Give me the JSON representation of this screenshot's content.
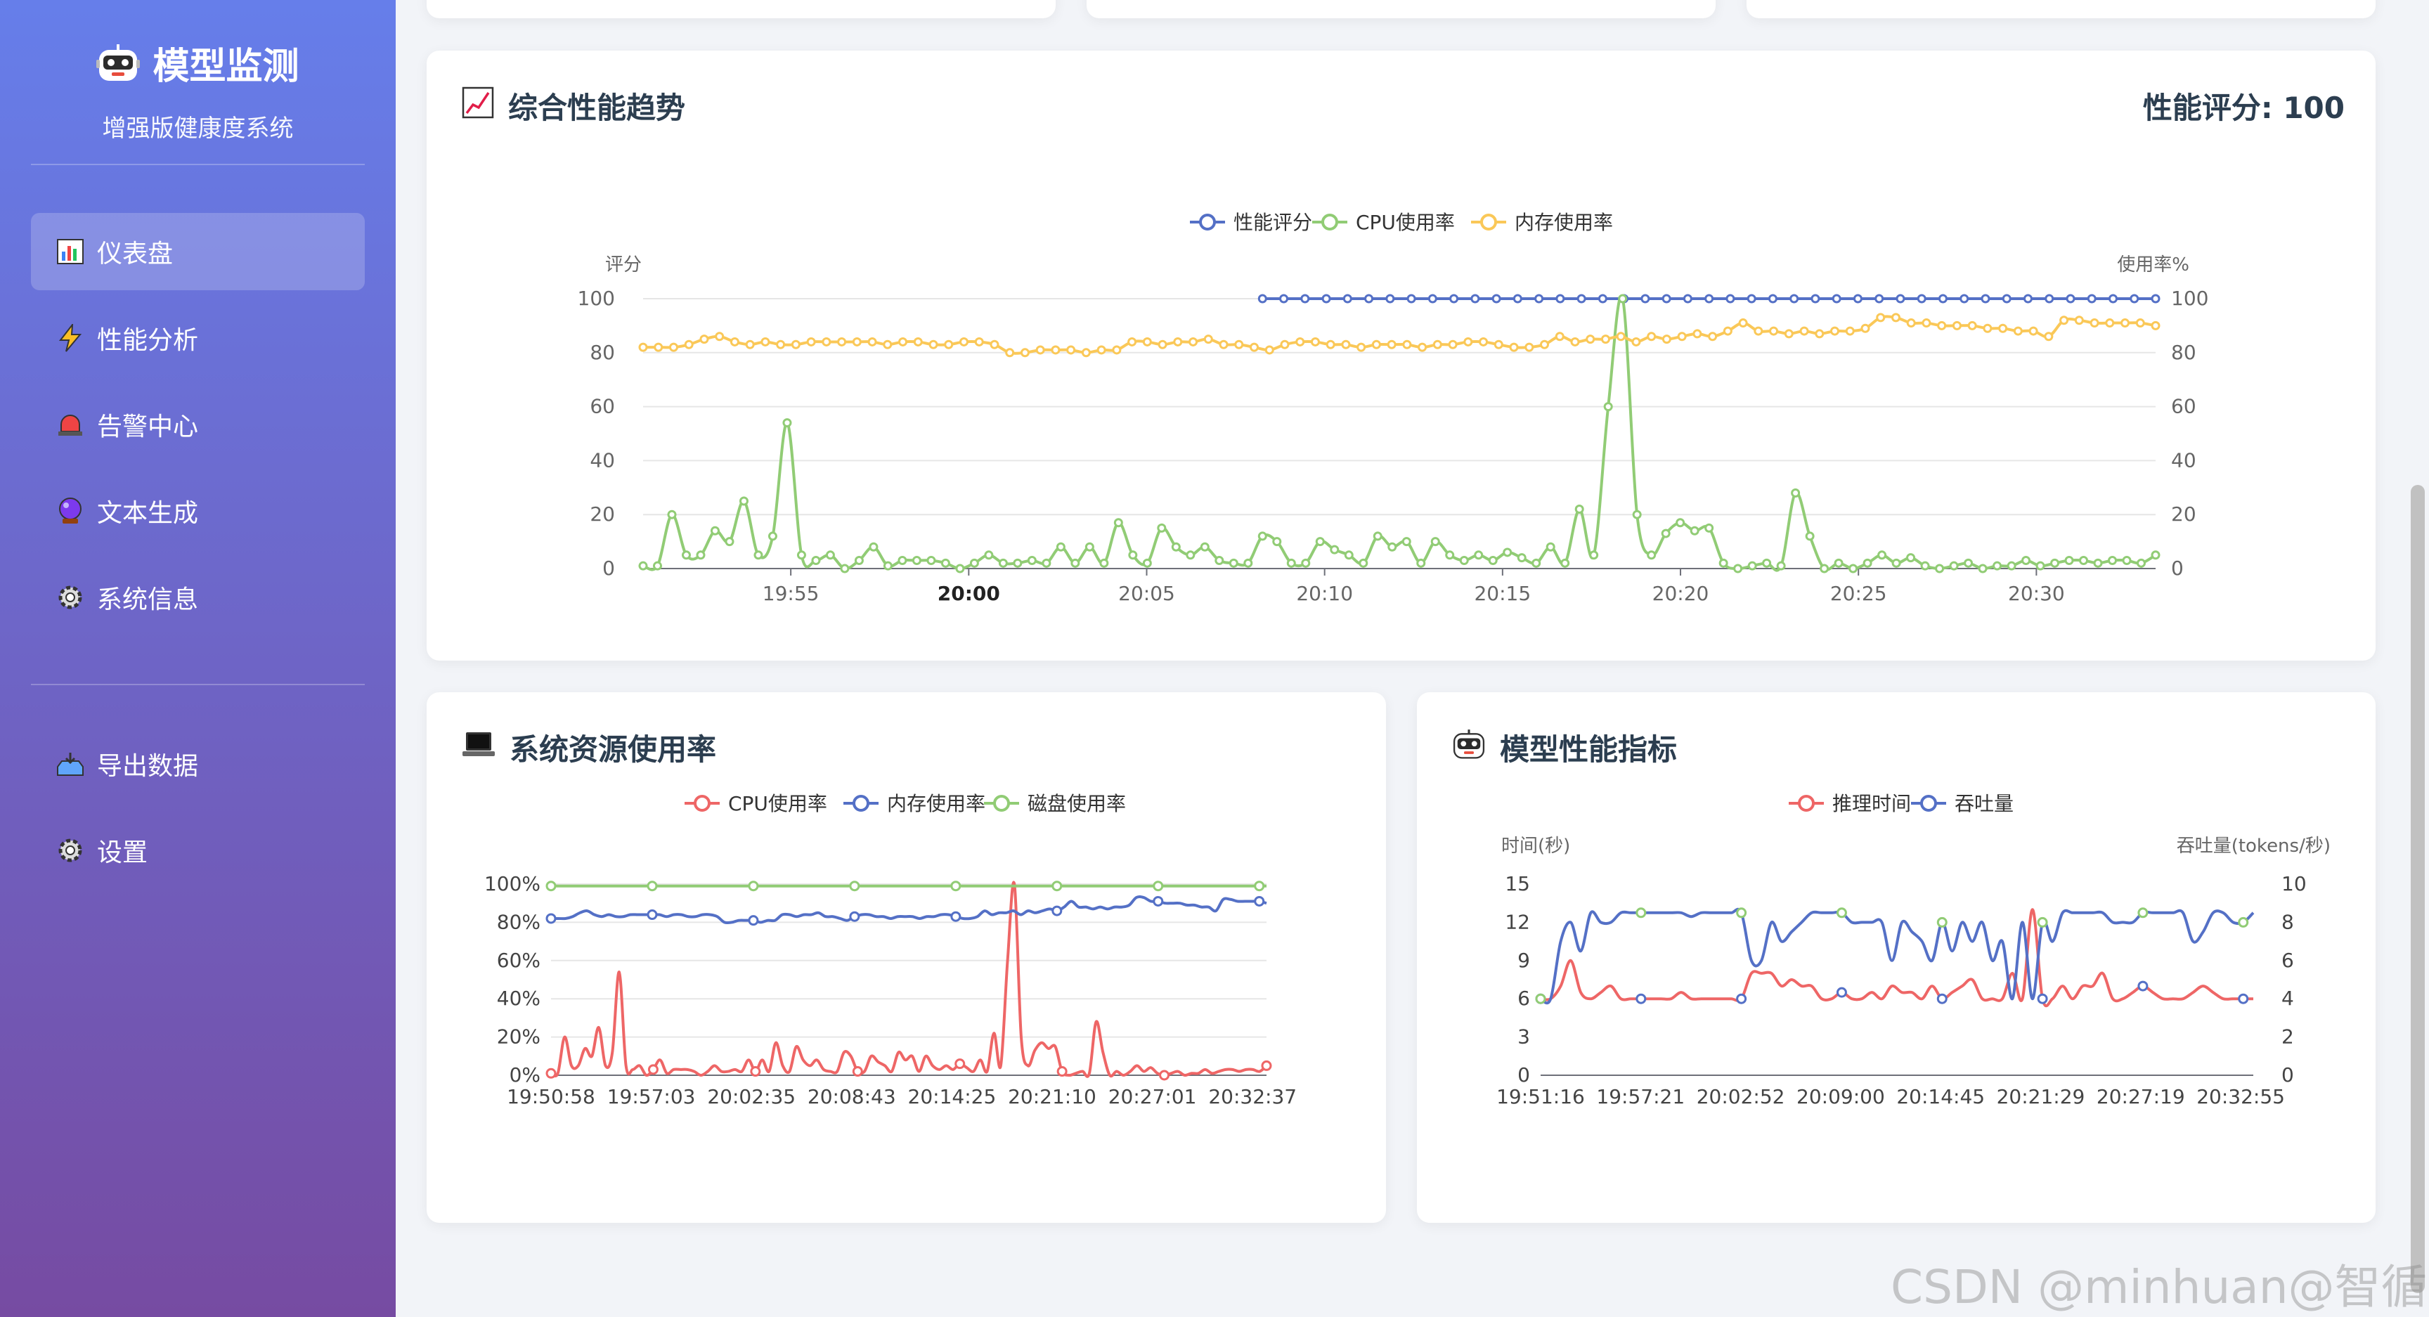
{
  "sidebar": {
    "title": "模型监测",
    "subtitle": "增强版健康度系统",
    "items": [
      {
        "label": "仪表盘",
        "icon": "bar-chart-icon",
        "active": true
      },
      {
        "label": "性能分析",
        "icon": "lightning-icon"
      },
      {
        "label": "告警中心",
        "icon": "siren-icon"
      },
      {
        "label": "文本生成",
        "icon": "crystal-ball-icon"
      },
      {
        "label": "系统信息",
        "icon": "gear-icon"
      }
    ],
    "bottom_items": [
      {
        "label": "导出数据",
        "icon": "tray-icon"
      },
      {
        "label": "设置",
        "icon": "gear-icon"
      }
    ]
  },
  "trend_card": {
    "title": "综合性能趋势",
    "score_label": "性能评分: 100"
  },
  "resource_card": {
    "title": "系统资源使用率"
  },
  "model_card": {
    "title": "模型性能指标"
  },
  "watermark": "CSDN @minhuan@智循AI",
  "chart_data": [
    {
      "type": "line",
      "id": "trend",
      "ylabel": "评分",
      "y2label": "使用率%",
      "ylim": [
        0,
        100
      ],
      "y2lim": [
        0,
        100
      ],
      "yticks": [
        0,
        20,
        40,
        60,
        80,
        100
      ],
      "xticks": [
        "19:55",
        "20:00",
        "20:05",
        "20:10",
        "20:15",
        "20:20",
        "20:25",
        "20:30"
      ],
      "xlim": [
        0,
        85
      ],
      "xtick_positions": [
        8.3,
        18.3,
        28.3,
        38.3,
        48.3,
        58.3,
        68.3,
        78.3
      ],
      "bold_tick": "20:00",
      "grid": true,
      "legend": "top-center",
      "series": [
        {
          "name": "性能评分",
          "color": "#5470c6",
          "start": 43,
          "values": [
            100,
            100,
            100,
            100,
            100,
            100,
            100,
            100,
            100,
            100,
            100,
            100,
            100,
            100,
            100,
            100,
            100,
            100,
            100,
            100,
            100,
            100,
            100,
            100,
            100,
            100,
            100,
            100,
            100,
            100,
            100,
            100,
            100,
            100,
            100,
            100,
            100,
            100,
            100,
            100,
            100,
            100,
            100
          ]
        },
        {
          "name": "CPU使用率",
          "color": "#91cc75",
          "start": 0,
          "values": [
            1,
            1,
            20,
            5,
            5,
            14,
            10,
            25,
            5,
            12,
            54,
            5,
            3,
            5,
            0,
            3,
            8,
            1,
            3,
            3,
            3,
            2,
            0,
            2,
            5,
            2,
            2,
            3,
            2,
            8,
            2,
            8,
            2,
            17,
            5,
            2,
            15,
            8,
            5,
            8,
            3,
            2,
            2,
            12,
            10,
            2,
            2,
            10,
            7,
            5,
            2,
            12,
            8,
            10,
            2,
            10,
            5,
            3,
            5,
            3,
            6,
            4,
            2,
            8,
            2,
            22,
            5,
            60,
            100,
            20,
            5,
            13,
            17,
            14,
            15,
            2,
            0,
            1,
            2,
            1,
            28,
            12,
            0,
            2,
            0,
            2,
            5,
            2,
            4,
            1,
            0,
            1,
            2,
            0,
            1,
            1,
            3,
            1,
            2,
            3,
            3,
            2,
            3,
            3,
            2,
            5
          ]
        },
        {
          "name": "内存使用率",
          "color": "#fac858",
          "start": 0,
          "values": [
            82,
            82,
            82,
            83,
            85,
            86,
            84,
            83,
            84,
            83,
            83,
            84,
            84,
            84,
            84,
            84,
            83,
            84,
            84,
            83,
            83,
            84,
            84,
            83,
            80,
            80,
            81,
            81,
            81,
            80,
            81,
            81,
            84,
            84,
            83,
            84,
            84,
            85,
            83,
            83,
            82,
            81,
            83,
            84,
            84,
            83,
            83,
            82,
            83,
            83,
            83,
            82,
            83,
            83,
            84,
            84,
            83,
            82,
            82,
            83,
            86,
            84,
            85,
            85,
            86,
            84,
            86,
            85,
            86,
            87,
            86,
            88,
            91,
            88,
            88,
            87,
            88,
            87,
            88,
            88,
            89,
            93,
            93,
            91,
            91,
            90,
            90,
            90,
            89,
            89,
            88,
            88,
            86,
            92,
            92,
            91,
            91,
            91,
            91,
            90
          ]
        }
      ]
    },
    {
      "type": "line",
      "id": "resource",
      "yticks": [
        "0%",
        "20%",
        "40%",
        "60%",
        "80%",
        "100%"
      ],
      "ylim": [
        0,
        100
      ],
      "xticks": [
        "19:50:58",
        "19:57:03",
        "20:02:35",
        "20:08:43",
        "20:14:25",
        "20:21:10",
        "20:27:01",
        "20:32:37"
      ],
      "legend": "top-center",
      "grid": true,
      "series": [
        {
          "name": "CPU使用率",
          "color": "#ee6666",
          "values": [
            1,
            1,
            20,
            5,
            5,
            14,
            10,
            25,
            5,
            12,
            54,
            5,
            3,
            5,
            0,
            3,
            8,
            1,
            3,
            3,
            3,
            2,
            0,
            2,
            5,
            2,
            2,
            3,
            2,
            8,
            2,
            8,
            2,
            17,
            5,
            2,
            15,
            8,
            5,
            8,
            3,
            2,
            2,
            12,
            10,
            2,
            2,
            10,
            7,
            5,
            2,
            12,
            8,
            10,
            2,
            10,
            5,
            3,
            5,
            3,
            6,
            4,
            2,
            8,
            2,
            22,
            5,
            60,
            100,
            20,
            5,
            13,
            17,
            14,
            15,
            2,
            0,
            1,
            2,
            1,
            28,
            12,
            0,
            2,
            0,
            2,
            5,
            2,
            4,
            1,
            0,
            1,
            2,
            0,
            1,
            1,
            3,
            1,
            2,
            3,
            3,
            2,
            3,
            3,
            2,
            5
          ]
        },
        {
          "name": "内存使用率",
          "color": "#5470c6",
          "values": [
            82,
            82,
            82,
            83,
            85,
            86,
            84,
            83,
            84,
            83,
            83,
            84,
            84,
            84,
            84,
            84,
            83,
            84,
            84,
            83,
            83,
            84,
            84,
            83,
            80,
            80,
            81,
            81,
            81,
            80,
            81,
            81,
            84,
            84,
            83,
            84,
            84,
            85,
            83,
            83,
            82,
            81,
            83,
            84,
            84,
            83,
            83,
            82,
            83,
            83,
            83,
            82,
            83,
            83,
            84,
            84,
            83,
            82,
            82,
            83,
            86,
            84,
            85,
            85,
            86,
            84,
            86,
            85,
            86,
            87,
            86,
            88,
            91,
            88,
            88,
            87,
            88,
            87,
            88,
            88,
            89,
            93,
            93,
            91,
            91,
            90,
            90,
            90,
            89,
            89,
            88,
            88,
            86,
            92,
            92,
            91,
            91,
            91,
            91,
            90
          ]
        },
        {
          "name": "磁盘使用率",
          "color": "#91cc75",
          "values": [
            99,
            99,
            99,
            99,
            99,
            99,
            99,
            99,
            99,
            99,
            99,
            99,
            99,
            99,
            99,
            99,
            99,
            99,
            99,
            99,
            99,
            99,
            99,
            99,
            99,
            99,
            99,
            99,
            99,
            99,
            99,
            99,
            99,
            99,
            99,
            99,
            99,
            99,
            99,
            99,
            99,
            99,
            99,
            99,
            99,
            99,
            99,
            99,
            99,
            99,
            99,
            99,
            99,
            99,
            99,
            99,
            99,
            99,
            99,
            99,
            99,
            99,
            99,
            99,
            99,
            99,
            99,
            99,
            99,
            99,
            99,
            99,
            99,
            99,
            99,
            99,
            99,
            99,
            99,
            99,
            99,
            99,
            99,
            99,
            99,
            99,
            99,
            99,
            99,
            99,
            99,
            99,
            99,
            99,
            99,
            99,
            99,
            99,
            99,
            99
          ]
        }
      ]
    },
    {
      "type": "line",
      "id": "model",
      "ylabel": "时间(秒)",
      "y2label": "吞吐量(tokens/秒)",
      "yticks": [
        0,
        3,
        6,
        9,
        12,
        15
      ],
      "ylim": [
        0,
        15
      ],
      "y2ticks": [
        0,
        2,
        4,
        6,
        8,
        10
      ],
      "y2lim": [
        0,
        10
      ],
      "xticks": [
        "19:51:16",
        "19:57:21",
        "20:02:52",
        "20:09:00",
        "20:14:45",
        "20:21:29",
        "20:27:19",
        "20:32:55"
      ],
      "legend": "top-center",
      "grid": false,
      "series": [
        {
          "name": "推理时间",
          "color": "#ee6666",
          "axis": "left",
          "values": [
            6,
            6,
            7,
            9,
            6.5,
            6,
            6.5,
            7,
            6,
            6,
            6,
            6,
            6,
            6,
            6.5,
            6,
            6,
            6,
            6,
            6,
            6,
            8,
            8,
            8,
            7,
            7.5,
            7,
            7,
            6,
            6,
            6.5,
            6,
            6,
            6.5,
            6,
            7,
            6.5,
            6.5,
            6,
            7,
            6,
            6.5,
            7,
            7.5,
            6,
            6,
            6,
            8,
            6,
            13,
            6,
            6,
            7,
            6,
            7,
            7,
            8,
            6,
            6,
            6.5,
            7,
            6.5,
            6,
            6,
            6,
            6.5,
            7,
            6.5,
            6,
            6,
            6,
            6
          ]
        },
        {
          "name": "吞吐量",
          "color": "#5470c6",
          "axis": "right",
          "values": [
            4,
            4,
            7,
            8,
            6.5,
            8.5,
            8,
            8,
            8.5,
            8.5,
            8.5,
            8.5,
            8.5,
            8.5,
            8.5,
            8.3,
            8.5,
            8.5,
            8.5,
            8.5,
            8.5,
            6,
            6,
            8,
            7,
            7.5,
            8,
            8.5,
            8.5,
            8.5,
            8.5,
            8,
            8,
            8,
            8,
            6,
            8,
            7.5,
            7,
            6,
            8,
            6.5,
            8,
            7,
            8,
            6,
            7,
            4,
            8,
            4,
            8,
            7,
            8.5,
            8.5,
            8.5,
            8.5,
            8.5,
            8,
            8,
            8,
            8.5,
            8.5,
            8.5,
            8.5,
            8.5,
            7,
            7.5,
            8.5,
            8.5,
            8,
            8,
            8.5
          ]
        }
      ]
    }
  ]
}
